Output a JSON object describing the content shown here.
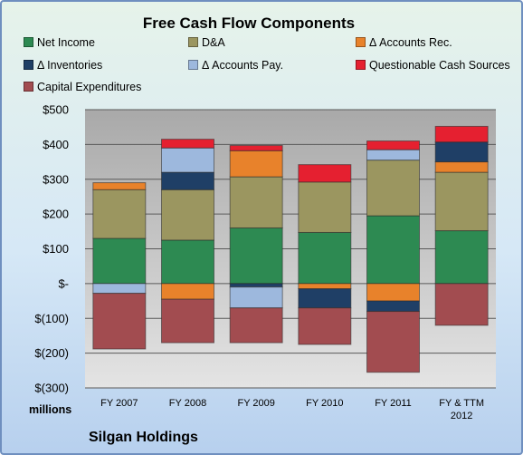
{
  "chart_data": {
    "type": "bar",
    "stacked": true,
    "title": "Free Cash Flow Components",
    "units_label": "millions",
    "company": "Silgan Holdings",
    "categories": [
      [
        "FY 2007"
      ],
      [
        "FY 2008"
      ],
      [
        "FY 2009"
      ],
      [
        "FY 2010"
      ],
      [
        "FY 2011"
      ],
      [
        "FY & TTM",
        "2012"
      ]
    ],
    "y_ticks": [
      {
        "value": 500,
        "label": "$500"
      },
      {
        "value": 400,
        "label": "$400"
      },
      {
        "value": 300,
        "label": "$300"
      },
      {
        "value": 200,
        "label": "$200"
      },
      {
        "value": 100,
        "label": "$100"
      },
      {
        "value": 0,
        "label": "$-"
      },
      {
        "value": -100,
        "label": "$(100)"
      },
      {
        "value": -200,
        "label": "$(200)"
      },
      {
        "value": -300,
        "label": "$(300)"
      }
    ],
    "ylim": [
      -300,
      500
    ],
    "grid": true,
    "legend_position": "top",
    "series": [
      {
        "name": "Net Income",
        "color": "#2d8a52",
        "values": [
          130,
          125,
          160,
          147,
          195,
          152
        ]
      },
      {
        "name": "D&A",
        "color": "#9b9660",
        "values": [
          140,
          145,
          147,
          145,
          160,
          168
        ]
      },
      {
        "name": "Δ Accounts Rec.",
        "color": "#e8822b",
        "values": [
          20,
          -45,
          75,
          -15,
          -50,
          30
        ]
      },
      {
        "name": "Δ Inventories",
        "color": "#1f3f66",
        "values": [
          0,
          50,
          -10,
          -55,
          -30,
          57
        ]
      },
      {
        "name": "Δ Accounts Pay.",
        "color": "#9db8dd",
        "values": [
          -28,
          70,
          -60,
          0,
          30,
          0
        ]
      },
      {
        "name": "Questionable Cash Sources",
        "color": "#e52030",
        "values": [
          0,
          25,
          15,
          50,
          25,
          45
        ]
      },
      {
        "name": "Capital Expenditures",
        "color": "#a24c50",
        "values": [
          -160,
          -125,
          -100,
          -105,
          -175,
          -120
        ]
      }
    ]
  }
}
